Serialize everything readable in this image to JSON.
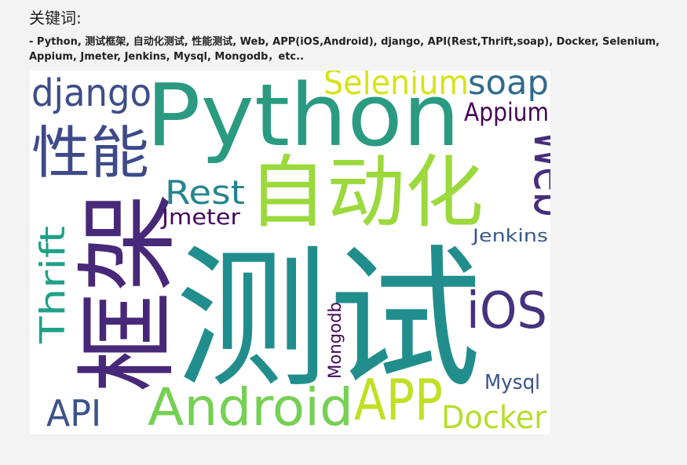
{
  "heading": "关键词:",
  "keywords_text": "- Python, 测试框架, 自动化测试, 性能测试, Web, APP(iOS,Android), django, API(Rest,Thrift,soap), Docker, Selenium, Appium, Jmeter, Jenkins, Mysql, Mongodb，etc..",
  "cloud": {
    "words": [
      {
        "id": "python",
        "text": "Python",
        "color": "#2a9b80"
      },
      {
        "id": "ce-shi",
        "text": "测试",
        "color": "#218e8d"
      },
      {
        "id": "kuang-jia",
        "text": "框架",
        "color": "#482878"
      },
      {
        "id": "zi-dong-hua",
        "text": "自动化",
        "color": "#9bd93c"
      },
      {
        "id": "xing-neng",
        "text": "性能",
        "color": "#3e4a89"
      },
      {
        "id": "django",
        "text": "django",
        "color": "#3e4c8a"
      },
      {
        "id": "selenium",
        "text": "Selenium",
        "color": "#d8e219"
      },
      {
        "id": "soap",
        "text": "soap",
        "color": "#2f6b8e"
      },
      {
        "id": "appium",
        "text": "Appium",
        "color": "#440154"
      },
      {
        "id": "web",
        "text": "Web",
        "color": "#472d7b"
      },
      {
        "id": "rest",
        "text": "Rest",
        "color": "#25858e"
      },
      {
        "id": "jmeter",
        "text": "Jmeter",
        "color": "#44095e"
      },
      {
        "id": "thrift",
        "text": "Thrift",
        "color": "#1fa187"
      },
      {
        "id": "jenkins",
        "text": "Jenkins",
        "color": "#38588c"
      },
      {
        "id": "ios",
        "text": "iOS",
        "color": "#46327e"
      },
      {
        "id": "mongodb",
        "text": "Mongodb",
        "color": "#46085c"
      },
      {
        "id": "mysql",
        "text": "Mysql",
        "color": "#3b528b"
      },
      {
        "id": "android",
        "text": "Android",
        "color": "#75d054"
      },
      {
        "id": "app",
        "text": "APP",
        "color": "#c2df23"
      },
      {
        "id": "api",
        "text": "API",
        "color": "#3b528b"
      },
      {
        "id": "docker",
        "text": "Docker",
        "color": "#b5de2b"
      }
    ]
  }
}
